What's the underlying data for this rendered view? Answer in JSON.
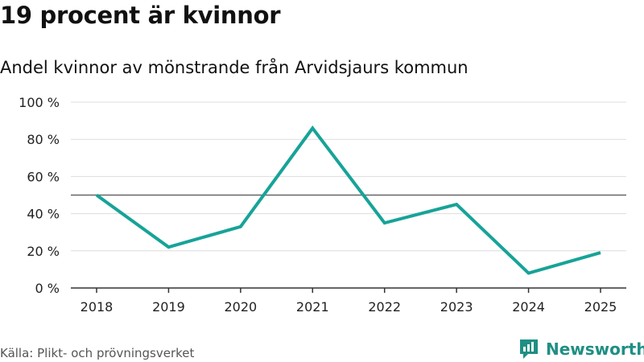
{
  "header": {
    "title": "19 procent är kvinnor",
    "subtitle": "Andel kvinnor av mönstrande från Arvidsjaurs kommun"
  },
  "footer": {
    "source": "Källa: Plikt- och prövningsverket",
    "brand": "Newsworthy",
    "brand_icon": "bar-chart-logo-icon"
  },
  "colors": {
    "line": "#17a398",
    "reference_line": "#666666",
    "grid": "#dddddd",
    "brand": "#1f8f83"
  },
  "chart_data": {
    "type": "line",
    "title": "19 procent är kvinnor",
    "subtitle": "Andel kvinnor av mönstrande från Arvidsjaurs kommun",
    "xlabel": "",
    "ylabel": "",
    "categories": [
      "2018",
      "2019",
      "2020",
      "2021",
      "2022",
      "2023",
      "2024",
      "2025"
    ],
    "series": [
      {
        "values": [
          50,
          22,
          33,
          86,
          35,
          45,
          8,
          19
        ]
      }
    ],
    "reference_line": 50,
    "ylim": [
      0,
      100
    ],
    "yticks": [
      0,
      20,
      40,
      60,
      80,
      100
    ],
    "ytick_labels": [
      "0 %",
      "20 %",
      "40 %",
      "60 %",
      "80 %",
      "100 %"
    ],
    "grid": true,
    "legend": "none"
  }
}
